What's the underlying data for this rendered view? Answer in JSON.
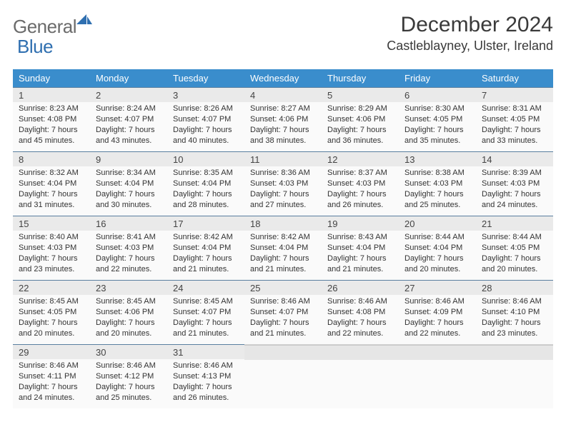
{
  "brand": {
    "word1": "General",
    "word2": "Blue"
  },
  "title": "December 2024",
  "location": "Castleblayney, Ulster, Ireland",
  "style": {
    "header_bg": "#3a8dcc",
    "header_fg": "#ffffff",
    "daynum_bg": "#eaeaea",
    "daynum_border": "#5a7fa0",
    "body_bg": "#fafafa",
    "brand_gray": "#6b6b6b",
    "brand_blue": "#2f6fb0",
    "font_family": "Arial, Helvetica, sans-serif",
    "title_fontsize": 30,
    "location_fontsize": 18,
    "weekday_fontsize": 13,
    "daynum_fontsize": 13,
    "body_fontsize": 11
  },
  "weekdays": [
    "Sunday",
    "Monday",
    "Tuesday",
    "Wednesday",
    "Thursday",
    "Friday",
    "Saturday"
  ],
  "days": [
    {
      "n": "1",
      "sunrise": "8:23 AM",
      "sunset": "4:08 PM",
      "daylight": "7 hours and 45 minutes."
    },
    {
      "n": "2",
      "sunrise": "8:24 AM",
      "sunset": "4:07 PM",
      "daylight": "7 hours and 43 minutes."
    },
    {
      "n": "3",
      "sunrise": "8:26 AM",
      "sunset": "4:07 PM",
      "daylight": "7 hours and 40 minutes."
    },
    {
      "n": "4",
      "sunrise": "8:27 AM",
      "sunset": "4:06 PM",
      "daylight": "7 hours and 38 minutes."
    },
    {
      "n": "5",
      "sunrise": "8:29 AM",
      "sunset": "4:06 PM",
      "daylight": "7 hours and 36 minutes."
    },
    {
      "n": "6",
      "sunrise": "8:30 AM",
      "sunset": "4:05 PM",
      "daylight": "7 hours and 35 minutes."
    },
    {
      "n": "7",
      "sunrise": "8:31 AM",
      "sunset": "4:05 PM",
      "daylight": "7 hours and 33 minutes."
    },
    {
      "n": "8",
      "sunrise": "8:32 AM",
      "sunset": "4:04 PM",
      "daylight": "7 hours and 31 minutes."
    },
    {
      "n": "9",
      "sunrise": "8:34 AM",
      "sunset": "4:04 PM",
      "daylight": "7 hours and 30 minutes."
    },
    {
      "n": "10",
      "sunrise": "8:35 AM",
      "sunset": "4:04 PM",
      "daylight": "7 hours and 28 minutes."
    },
    {
      "n": "11",
      "sunrise": "8:36 AM",
      "sunset": "4:03 PM",
      "daylight": "7 hours and 27 minutes."
    },
    {
      "n": "12",
      "sunrise": "8:37 AM",
      "sunset": "4:03 PM",
      "daylight": "7 hours and 26 minutes."
    },
    {
      "n": "13",
      "sunrise": "8:38 AM",
      "sunset": "4:03 PM",
      "daylight": "7 hours and 25 minutes."
    },
    {
      "n": "14",
      "sunrise": "8:39 AM",
      "sunset": "4:03 PM",
      "daylight": "7 hours and 24 minutes."
    },
    {
      "n": "15",
      "sunrise": "8:40 AM",
      "sunset": "4:03 PM",
      "daylight": "7 hours and 23 minutes."
    },
    {
      "n": "16",
      "sunrise": "8:41 AM",
      "sunset": "4:03 PM",
      "daylight": "7 hours and 22 minutes."
    },
    {
      "n": "17",
      "sunrise": "8:42 AM",
      "sunset": "4:04 PM",
      "daylight": "7 hours and 21 minutes."
    },
    {
      "n": "18",
      "sunrise": "8:42 AM",
      "sunset": "4:04 PM",
      "daylight": "7 hours and 21 minutes."
    },
    {
      "n": "19",
      "sunrise": "8:43 AM",
      "sunset": "4:04 PM",
      "daylight": "7 hours and 21 minutes."
    },
    {
      "n": "20",
      "sunrise": "8:44 AM",
      "sunset": "4:04 PM",
      "daylight": "7 hours and 20 minutes."
    },
    {
      "n": "21",
      "sunrise": "8:44 AM",
      "sunset": "4:05 PM",
      "daylight": "7 hours and 20 minutes."
    },
    {
      "n": "22",
      "sunrise": "8:45 AM",
      "sunset": "4:05 PM",
      "daylight": "7 hours and 20 minutes."
    },
    {
      "n": "23",
      "sunrise": "8:45 AM",
      "sunset": "4:06 PM",
      "daylight": "7 hours and 20 minutes."
    },
    {
      "n": "24",
      "sunrise": "8:45 AM",
      "sunset": "4:07 PM",
      "daylight": "7 hours and 21 minutes."
    },
    {
      "n": "25",
      "sunrise": "8:46 AM",
      "sunset": "4:07 PM",
      "daylight": "7 hours and 21 minutes."
    },
    {
      "n": "26",
      "sunrise": "8:46 AM",
      "sunset": "4:08 PM",
      "daylight": "7 hours and 22 minutes."
    },
    {
      "n": "27",
      "sunrise": "8:46 AM",
      "sunset": "4:09 PM",
      "daylight": "7 hours and 22 minutes."
    },
    {
      "n": "28",
      "sunrise": "8:46 AM",
      "sunset": "4:10 PM",
      "daylight": "7 hours and 23 minutes."
    },
    {
      "n": "29",
      "sunrise": "8:46 AM",
      "sunset": "4:11 PM",
      "daylight": "7 hours and 24 minutes."
    },
    {
      "n": "30",
      "sunrise": "8:46 AM",
      "sunset": "4:12 PM",
      "daylight": "7 hours and 25 minutes."
    },
    {
      "n": "31",
      "sunrise": "8:46 AM",
      "sunset": "4:13 PM",
      "daylight": "7 hours and 26 minutes."
    }
  ],
  "labels": {
    "sunrise_prefix": "Sunrise: ",
    "sunset_prefix": "Sunset: ",
    "daylight_prefix": "Daylight: "
  },
  "layout": {
    "columns": 7,
    "rows": 5,
    "start_weekday_index": 0,
    "trailing_empty": 4
  }
}
